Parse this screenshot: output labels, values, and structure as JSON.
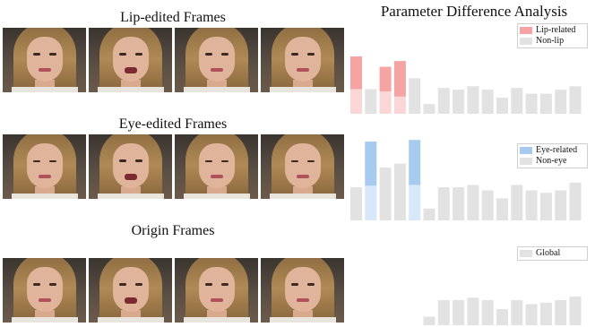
{
  "rows": [
    {
      "title": "Lip-edited Frames",
      "frames": [
        "neutral",
        "open",
        "neutral",
        "neutral"
      ]
    },
    {
      "title": "Eye-edited Frames",
      "frames": [
        "closed",
        "open",
        "closed",
        "closed"
      ]
    },
    {
      "title": "Origin Frames",
      "frames": [
        "smile",
        "open",
        "smile",
        "smile"
      ]
    }
  ],
  "analysis_title": "Parameter Difference Analysis",
  "colors": {
    "lip": "#f5a3a3",
    "eye": "#a6cbef",
    "gray": "#e2e2e2"
  },
  "chart_data": [
    {
      "type": "bar",
      "highlight_name": "Lip-related",
      "base_name": "Non-lip",
      "highlight_color": "#f5a3a3",
      "values": [
        1.0,
        0.43,
        0.82,
        0.92,
        0.62,
        0.17,
        0.45,
        0.42,
        0.48,
        0.42,
        0.28,
        0.45,
        0.35,
        0.35,
        0.42,
        0.48
      ],
      "highlight": [
        0.57,
        0,
        0.43,
        0.62,
        0,
        0,
        0,
        0,
        0,
        0,
        0,
        0,
        0,
        0,
        0,
        0
      ]
    },
    {
      "type": "bar",
      "highlight_name": "Eye-related",
      "base_name": "Non-eye",
      "highlight_color": "#a6cbef",
      "values": [
        0.42,
        1.0,
        0.67,
        0.72,
        1.02,
        0.15,
        0.42,
        0.42,
        0.45,
        0.38,
        0.28,
        0.45,
        0.38,
        0.35,
        0.38,
        0.48
      ],
      "highlight": [
        0,
        0.56,
        0,
        0,
        0.57,
        0,
        0,
        0,
        0,
        0,
        0,
        0,
        0,
        0,
        0,
        0
      ]
    },
    {
      "type": "bar",
      "base_name": "Global",
      "values": [
        0,
        0,
        0,
        0,
        0,
        0.17,
        0.5,
        0.5,
        0.55,
        0.5,
        0.32,
        0.5,
        0.42,
        0.45,
        0.5,
        0.57
      ],
      "highlight": []
    }
  ]
}
